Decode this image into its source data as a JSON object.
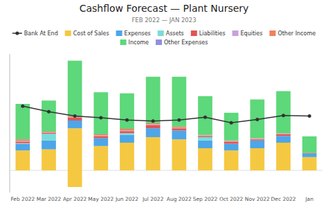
{
  "chart_data": {
    "type": "bar",
    "stacked": true,
    "title": "Cashflow Forecast — Plant Nursery",
    "subtitle": "FEB 2022 — JAN 2023",
    "categories": [
      "Feb 2022",
      "Mar 2022",
      "Apr 2022",
      "May 2022",
      "Jun 2022",
      "Jul 2022",
      "Aug 2022",
      "Sep 2022",
      "Oct 2022",
      "Nov 2022",
      "Dec 2022",
      "Jan"
    ],
    "series": [
      {
        "name": "Bank At End",
        "type": "line",
        "marker": "circle",
        "color": "#333333",
        "values": [
          5.8,
          5.3,
          4.9,
          4.75,
          4.55,
          4.45,
          4.55,
          4.8,
          4.3,
          4.6,
          4.95,
          4.9
        ]
      },
      {
        "color": "#f5c842",
        "values": [
          0.0,
          0.0,
          -1.5,
          0.0,
          0.0,
          0.0,
          0.0,
          0.0,
          0.0,
          0.0,
          0.0,
          0.0
        ]
      },
      {
        "name": "Cost of Sales",
        "color": "#f5c842",
        "values": [
          1.8,
          1.9,
          3.8,
          2.2,
          2.5,
          3.0,
          2.8,
          2.0,
          1.8,
          2.0,
          2.5,
          1.2
        ]
      },
      {
        "name": "Expenses",
        "color": "#4da6e8",
        "values": [
          0.6,
          0.8,
          0.7,
          0.7,
          0.7,
          0.8,
          0.8,
          0.7,
          0.6,
          0.7,
          0.6,
          0.3
        ]
      },
      {
        "name": "Assets",
        "color": "#7adcd8",
        "values": [
          0.05,
          0.6,
          0.0,
          0.0,
          0.15,
          0.0,
          0.0,
          0.3,
          0.0,
          0.0,
          0.0,
          0.0
        ]
      },
      {
        "name": "Liabilities",
        "color": "#e05555",
        "values": [
          0.15,
          0.1,
          0.25,
          0.2,
          0.2,
          0.3,
          0.2,
          0.1,
          0.2,
          0.1,
          0.15,
          0.05
        ]
      },
      {
        "name": "Equities",
        "color": "#c9a0dc",
        "values": [
          0.05,
          0.05,
          0.05,
          0.05,
          0.05,
          0.05,
          0.05,
          0.05,
          0.05,
          0.05,
          0.05,
          0.02
        ]
      },
      {
        "name": "Other Income",
        "color": "#f08060",
        "values": [
          0.15,
          0.05,
          0.1,
          0.1,
          0.15,
          0.1,
          0.1,
          0.05,
          0.05,
          0.05,
          0.05,
          0.0
        ]
      },
      {
        "name": "Income",
        "color": "#5dd87a",
        "values": [
          3.2,
          2.8,
          5.0,
          3.8,
          3.2,
          4.2,
          4.5,
          3.5,
          2.5,
          3.5,
          3.8,
          1.5
        ]
      },
      {
        "name": "Other Expenses",
        "color": "#9090e0",
        "values": [
          null,
          null,
          null,
          null,
          null,
          null,
          null,
          null,
          null,
          null,
          null,
          null
        ]
      }
    ],
    "ylim": [
      -2.0,
      10.5
    ],
    "tick_labels": "x",
    "grid": false,
    "legend": "top"
  }
}
